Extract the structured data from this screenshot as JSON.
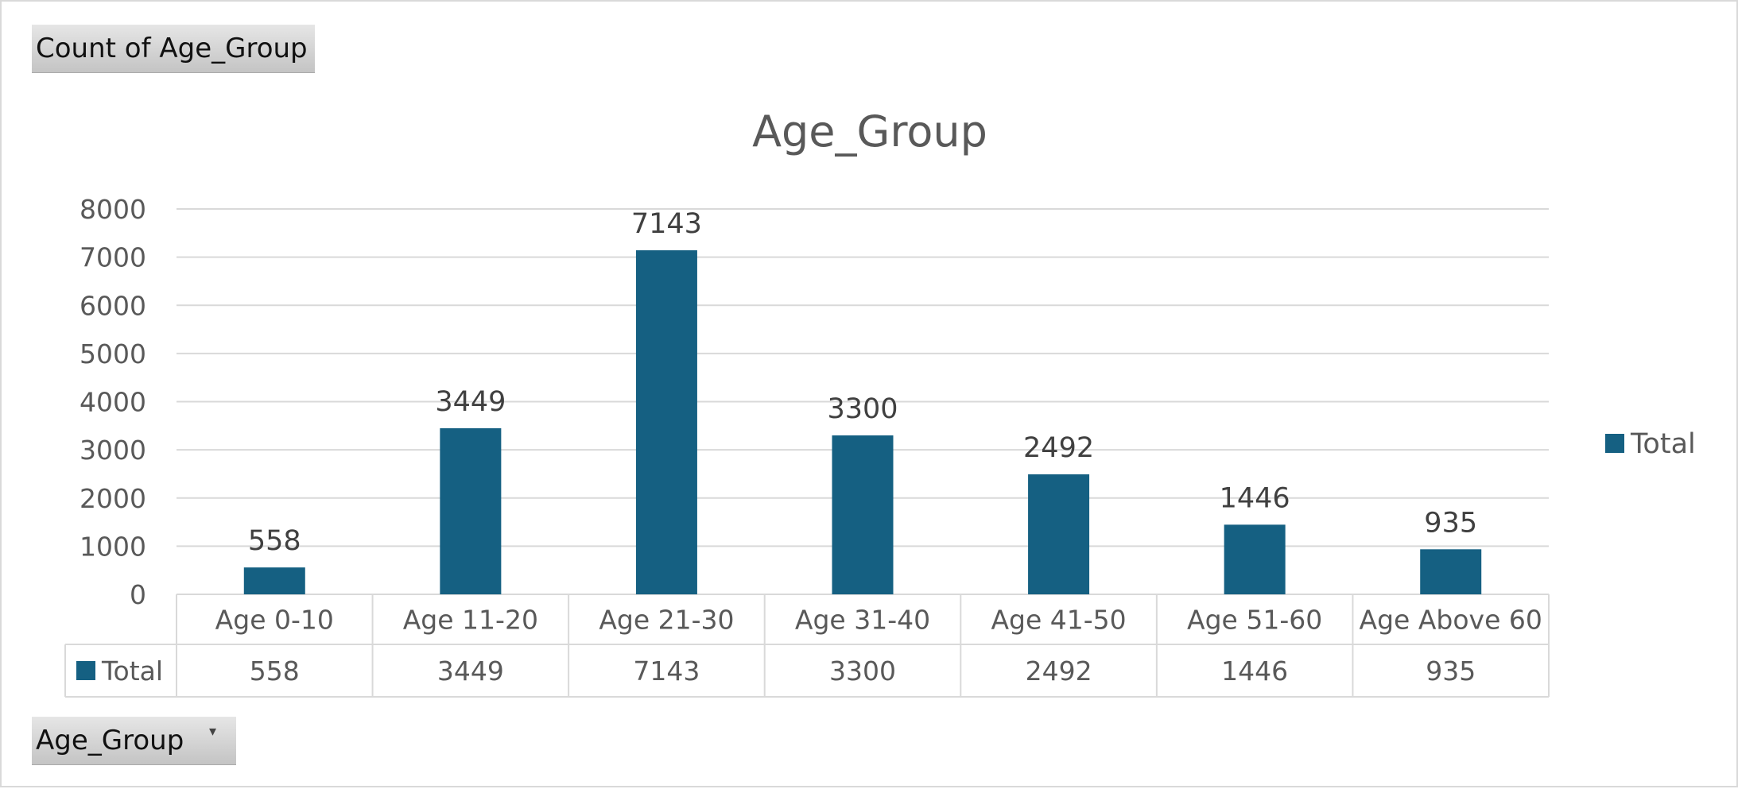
{
  "value_field_button": "Count of Age_Group",
  "axis_field_button": "Age_Group",
  "axis_field_dropdown": "▾",
  "colors": {
    "bar": "#156082",
    "grid": "#d9d9d9",
    "text": "#595959",
    "label": "#404040"
  },
  "chart_data": {
    "type": "bar",
    "title": "Age_Group",
    "xlabel": "",
    "ylabel": "",
    "categories": [
      "Age 0-10",
      "Age 11-20",
      "Age 21-30",
      "Age 31-40",
      "Age 41-50",
      "Age 51-60",
      "Age Above 60"
    ],
    "series": [
      {
        "name": "Total",
        "values": [
          558,
          3449,
          7143,
          3300,
          2492,
          1446,
          935
        ]
      }
    ],
    "yticks": [
      "0",
      "1000",
      "2000",
      "3000",
      "4000",
      "5000",
      "6000",
      "7000",
      "8000"
    ],
    "ylim": [
      0,
      8000
    ],
    "grid": true,
    "data_labels": true,
    "data_table": true,
    "legend": {
      "position": "right",
      "entries": [
        "Total"
      ]
    }
  }
}
